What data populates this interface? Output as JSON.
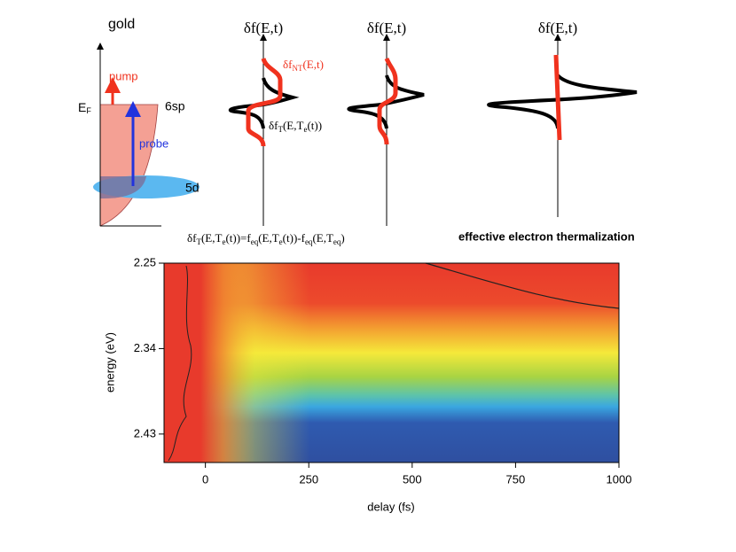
{
  "diagram": {
    "material": "gold",
    "pump": "pump",
    "probe": "probe",
    "fermi": [
      "E",
      "F"
    ],
    "band_sp": "6sp",
    "band_d": "5d",
    "axis_titles": [
      "δf(E,t)",
      "δf(E,t)",
      "δf(E,t)"
    ],
    "nt_label": [
      "δf",
      "NT",
      "(E,t)"
    ],
    "t_label": [
      "δf",
      "T",
      "(E,T",
      "e",
      "(t))"
    ],
    "equation": [
      "δf",
      "T",
      "(E,T",
      "e",
      "(t))=f",
      "eq",
      "(E,T",
      "e",
      "(t))-f",
      "eq",
      "(E,T",
      "eq",
      ")"
    ],
    "caption": "effective electron thermalization"
  },
  "chart_data": {
    "type": "heatmap",
    "x_label": "delay (fs)",
    "y_label": "energy (eV)",
    "xlim": [
      -100,
      1000
    ],
    "xticks": [
      0,
      250,
      500,
      750,
      1000
    ],
    "ylim": [
      2.46,
      2.25
    ],
    "yticks": [
      2.25,
      2.34,
      2.43
    ]
  }
}
